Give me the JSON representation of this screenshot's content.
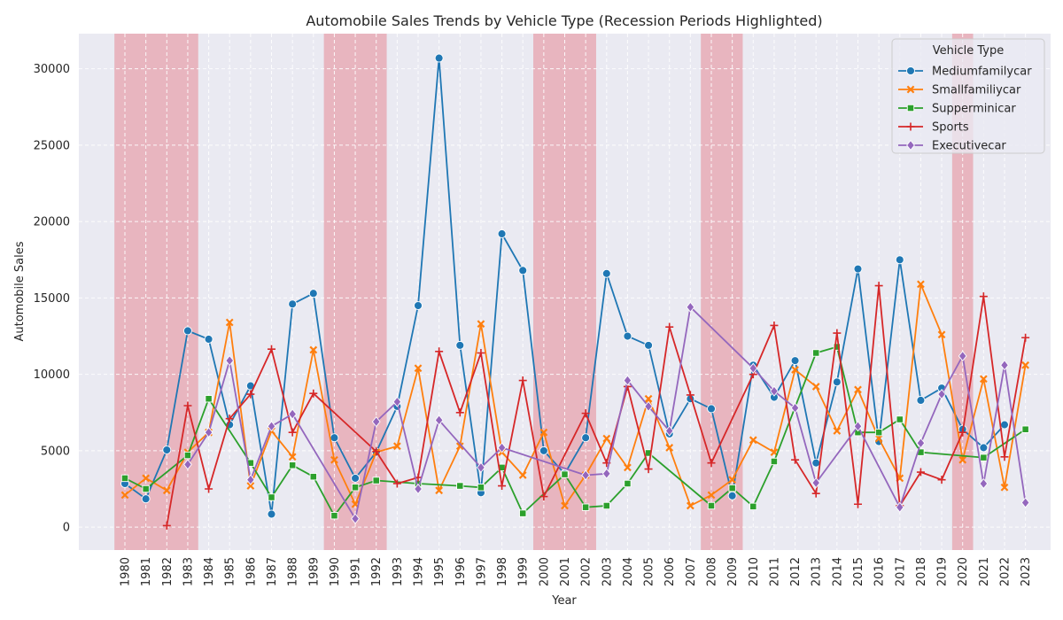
{
  "chart_data": {
    "type": "line",
    "title": "Automobile Sales Trends by Vehicle Type (Recession Periods Highlighted)",
    "xlabel": "Year",
    "ylabel": "Automobile Sales",
    "ylim": [
      -1500,
      32300
    ],
    "xlim": [
      1977.8,
      2024.2
    ],
    "yticks": [
      0,
      5000,
      10000,
      15000,
      20000,
      25000,
      30000
    ],
    "xticks": [
      1980,
      1981,
      1982,
      1983,
      1984,
      1985,
      1986,
      1987,
      1988,
      1989,
      1990,
      1991,
      1992,
      1993,
      1994,
      1995,
      1996,
      1997,
      1998,
      1999,
      2000,
      2001,
      2002,
      2003,
      2004,
      2005,
      2006,
      2007,
      2008,
      2009,
      2010,
      2011,
      2012,
      2013,
      2014,
      2015,
      2016,
      2017,
      2018,
      2019,
      2020,
      2021,
      2022,
      2023
    ],
    "grid": true,
    "legend_placement": "top-right",
    "legend_title": "Vehicle Type",
    "recession_color": "#e57f8b",
    "recession_periods": [
      [
        1980,
        1983
      ],
      [
        1990,
        1992
      ],
      [
        2000,
        2002
      ],
      [
        2008,
        2009
      ],
      [
        2020,
        2020
      ]
    ],
    "series": [
      {
        "name": "Mediumfamilycar",
        "color": "#1f77b4",
        "marker": "circle",
        "points": [
          [
            1980,
            2850
          ],
          [
            1981,
            1850
          ],
          [
            1982,
            5050
          ],
          [
            1983,
            12850
          ],
          [
            1984,
            12300
          ],
          [
            1985,
            6700
          ],
          [
            1986,
            9250
          ],
          [
            1987,
            850
          ],
          [
            1988,
            14600
          ],
          [
            1989,
            15300
          ],
          [
            1990,
            5850
          ],
          [
            1991,
            3200
          ],
          [
            1992,
            4900
          ],
          [
            1993,
            7900
          ],
          [
            1994,
            14500
          ],
          [
            1995,
            30700
          ],
          [
            1996,
            11900
          ],
          [
            1997,
            2250
          ],
          [
            1998,
            19200
          ],
          [
            1999,
            16800
          ],
          [
            2000,
            5000
          ],
          [
            2001,
            3500
          ],
          [
            2002,
            5850
          ],
          [
            2003,
            16600
          ],
          [
            2004,
            12500
          ],
          [
            2005,
            11900
          ],
          [
            2006,
            6100
          ],
          [
            2007,
            8400
          ],
          [
            2008,
            7750
          ],
          [
            2009,
            2050
          ],
          [
            2010,
            10600
          ],
          [
            2011,
            8500
          ],
          [
            2012,
            10900
          ],
          [
            2013,
            4200
          ],
          [
            2014,
            9500
          ],
          [
            2015,
            16900
          ],
          [
            2016,
            5600
          ],
          [
            2017,
            17500
          ],
          [
            2018,
            8300
          ],
          [
            2019,
            9100
          ],
          [
            2020,
            6400
          ],
          [
            2021,
            5200
          ],
          [
            2022,
            6700
          ]
        ]
      },
      {
        "name": "Smallfamiliycar",
        "color": "#ff7f0e",
        "marker": "x",
        "points": [
          [
            1980,
            2100
          ],
          [
            1981,
            3200
          ],
          [
            1982,
            2400
          ],
          [
            1983,
            4900
          ],
          [
            1984,
            6200
          ],
          [
            1985,
            13400
          ],
          [
            1986,
            2700
          ],
          [
            1987,
            6300
          ],
          [
            1988,
            4600
          ],
          [
            1989,
            11600
          ],
          [
            1990,
            4400
          ],
          [
            1991,
            1500
          ],
          [
            1992,
            4900
          ],
          [
            1993,
            5300
          ],
          [
            1994,
            10400
          ],
          [
            1995,
            2400
          ],
          [
            1996,
            5300
          ],
          [
            1997,
            13300
          ],
          [
            1998,
            4900
          ],
          [
            1999,
            3400
          ],
          [
            2000,
            6200
          ],
          [
            2001,
            1400
          ],
          [
            2002,
            3400
          ],
          [
            2003,
            5800
          ],
          [
            2004,
            3900
          ],
          [
            2005,
            8400
          ],
          [
            2006,
            5200
          ],
          [
            2007,
            1400
          ],
          [
            2008,
            2100
          ],
          [
            2009,
            3100
          ],
          [
            2010,
            5700
          ],
          [
            2011,
            4900
          ],
          [
            2012,
            10300
          ],
          [
            2013,
            9200
          ],
          [
            2014,
            6300
          ],
          [
            2015,
            9000
          ],
          [
            2016,
            5800
          ],
          [
            2017,
            3200
          ],
          [
            2018,
            15900
          ],
          [
            2019,
            12600
          ],
          [
            2020,
            4400
          ],
          [
            2021,
            9700
          ],
          [
            2022,
            2600
          ],
          [
            2023,
            10600
          ]
        ]
      },
      {
        "name": "Supperminicar",
        "color": "#2ca02c",
        "marker": "square",
        "points": [
          [
            1980,
            3200
          ],
          [
            1981,
            2500
          ],
          [
            1983,
            4700
          ],
          [
            1984,
            8400
          ],
          [
            1986,
            4200
          ],
          [
            1987,
            1950
          ],
          [
            1988,
            4050
          ],
          [
            1989,
            3300
          ],
          [
            1990,
            750
          ],
          [
            1991,
            2600
          ],
          [
            1992,
            3050
          ],
          [
            1994,
            2850
          ],
          [
            1996,
            2700
          ],
          [
            1997,
            2600
          ],
          [
            1998,
            3900
          ],
          [
            1999,
            900
          ],
          [
            2001,
            3450
          ],
          [
            2002,
            1300
          ],
          [
            2003,
            1400
          ],
          [
            2004,
            2850
          ],
          [
            2005,
            4850
          ],
          [
            2008,
            1400
          ],
          [
            2009,
            2550
          ],
          [
            2010,
            1350
          ],
          [
            2011,
            4300
          ],
          [
            2013,
            11400
          ],
          [
            2014,
            11800
          ],
          [
            2015,
            6200
          ],
          [
            2016,
            6200
          ],
          [
            2017,
            7050
          ],
          [
            2018,
            4900
          ],
          [
            2021,
            4550
          ],
          [
            2023,
            6400
          ]
        ]
      },
      {
        "name": "Sports",
        "color": "#d62728",
        "marker": "plus",
        "points": [
          [
            1982,
            100
          ],
          [
            1983,
            7950
          ],
          [
            1984,
            2500
          ],
          [
            1985,
            7100
          ],
          [
            1986,
            8700
          ],
          [
            1987,
            11650
          ],
          [
            1988,
            6200
          ],
          [
            1989,
            8750
          ],
          [
            1992,
            4950
          ],
          [
            1993,
            2850
          ],
          [
            1994,
            3250
          ],
          [
            1995,
            11500
          ],
          [
            1996,
            7500
          ],
          [
            1997,
            11400
          ],
          [
            1998,
            2700
          ],
          [
            1999,
            9600
          ],
          [
            2000,
            2000
          ],
          [
            2002,
            7450
          ],
          [
            2003,
            4200
          ],
          [
            2004,
            9200
          ],
          [
            2005,
            3800
          ],
          [
            2006,
            13100
          ],
          [
            2007,
            8650
          ],
          [
            2008,
            4200
          ],
          [
            2010,
            10000
          ],
          [
            2011,
            13200
          ],
          [
            2012,
            4400
          ],
          [
            2013,
            2200
          ],
          [
            2014,
            12700
          ],
          [
            2015,
            1500
          ],
          [
            2016,
            15800
          ],
          [
            2017,
            1400
          ],
          [
            2018,
            3600
          ],
          [
            2019,
            3100
          ],
          [
            2020,
            6200
          ],
          [
            2021,
            15100
          ],
          [
            2022,
            4600
          ],
          [
            2023,
            12400
          ]
        ]
      },
      {
        "name": "Executivecar",
        "color": "#9467bd",
        "marker": "diamond",
        "points": [
          [
            1983,
            4100
          ],
          [
            1984,
            6200
          ],
          [
            1985,
            10900
          ],
          [
            1986,
            3100
          ],
          [
            1987,
            6600
          ],
          [
            1988,
            7400
          ],
          [
            1991,
            550
          ],
          [
            1992,
            6900
          ],
          [
            1993,
            8200
          ],
          [
            1994,
            2500
          ],
          [
            1995,
            7000
          ],
          [
            1997,
            3900
          ],
          [
            1998,
            5200
          ],
          [
            2002,
            3400
          ],
          [
            2003,
            3500
          ],
          [
            2004,
            9600
          ],
          [
            2005,
            7900
          ],
          [
            2006,
            6300
          ],
          [
            2007,
            14400
          ],
          [
            2010,
            10400
          ],
          [
            2011,
            8900
          ],
          [
            2012,
            7800
          ],
          [
            2013,
            2900
          ],
          [
            2015,
            6600
          ],
          [
            2017,
            1300
          ],
          [
            2018,
            5500
          ],
          [
            2019,
            8700
          ],
          [
            2020,
            11200
          ],
          [
            2021,
            2850
          ],
          [
            2022,
            10600
          ],
          [
            2023,
            1600
          ]
        ]
      }
    ]
  }
}
